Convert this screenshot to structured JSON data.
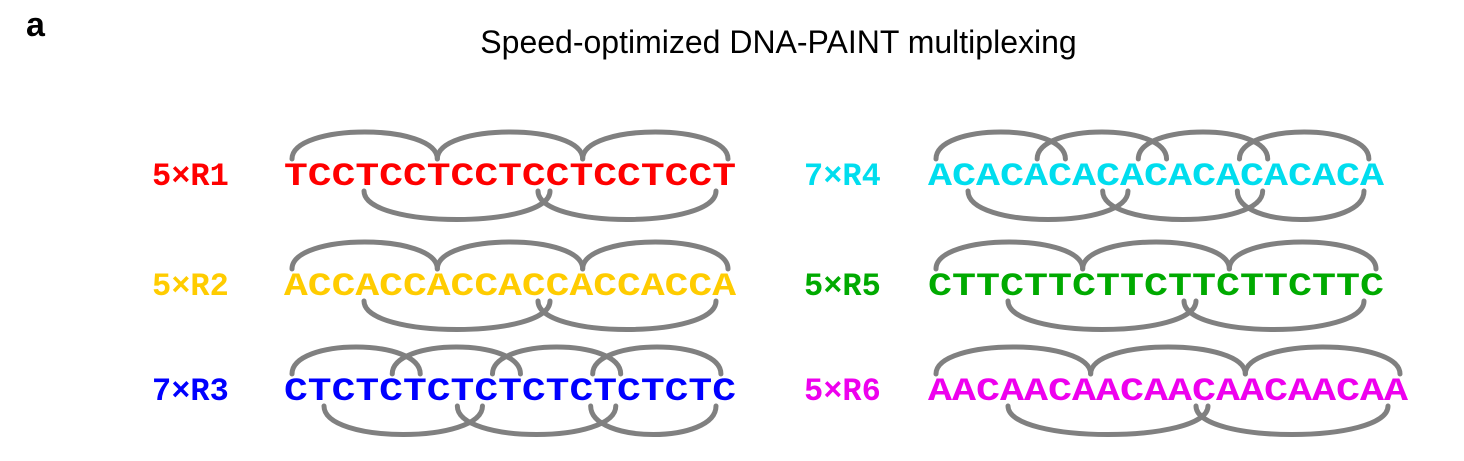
{
  "panel_label": "a",
  "title": "Speed-optimized DNA-PAINT multiplexing",
  "colors": {
    "loop": "#808080"
  },
  "sequences": [
    {
      "id": "R1",
      "label": "5×R1",
      "sequence": "TCCTCCTCCTCCTCCTCCT",
      "color": "#ff0000",
      "repeat_length": 3
    },
    {
      "id": "R2",
      "label": "5×R2",
      "sequence": "ACCACCACCACCACCACCA",
      "color": "#ffcc00",
      "repeat_length": 3
    },
    {
      "id": "R3",
      "label": "7×R3",
      "sequence": "CTCTCTCTCTCTCTCTCTC",
      "color": "#0000ff",
      "repeat_length": 2
    },
    {
      "id": "R4",
      "label": "7×R4",
      "sequence": "ACACACACACACACACACA",
      "color": "#00ddee",
      "repeat_length": 2
    },
    {
      "id": "R5",
      "label": "5×R5",
      "sequence": "CTTCTTCTTCTTCTTCTTC",
      "color": "#00aa00",
      "repeat_length": 3
    },
    {
      "id": "R6",
      "label": "5×R6",
      "sequence": "AACAACAACAACAACAACAA",
      "color": "#ee00ee",
      "repeat_length": 3
    }
  ]
}
